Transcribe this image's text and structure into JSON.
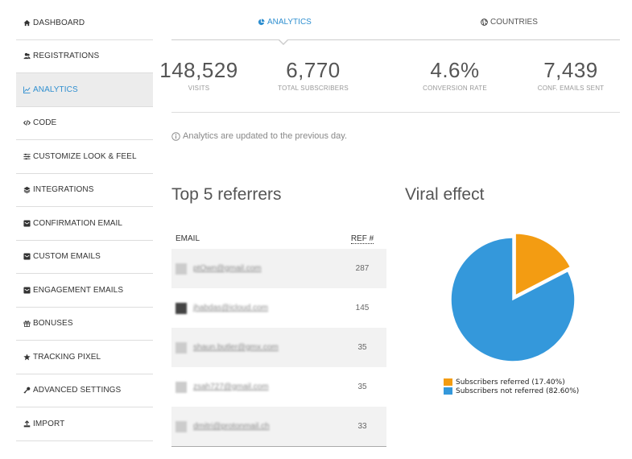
{
  "sidebar": {
    "items": [
      {
        "label": "DASHBOARD",
        "icon": "home-icon"
      },
      {
        "label": "REGISTRATIONS",
        "icon": "users-icon"
      },
      {
        "label": "ANALYTICS",
        "icon": "chart-icon"
      },
      {
        "label": "CODE",
        "icon": "code-icon"
      },
      {
        "label": "CUSTOMIZE LOOK & FEEL",
        "icon": "sliders-icon"
      },
      {
        "label": "INTEGRATIONS",
        "icon": "layers-icon"
      },
      {
        "label": "CONFIRMATION EMAIL",
        "icon": "envelope-icon"
      },
      {
        "label": "CUSTOM EMAILS",
        "icon": "envelope-icon"
      },
      {
        "label": "ENGAGEMENT EMAILS",
        "icon": "envelope-icon"
      },
      {
        "label": "BONUSES",
        "icon": "gift-icon"
      },
      {
        "label": "TRACKING PIXEL",
        "icon": "star-icon"
      },
      {
        "label": "ADVANCED SETTINGS",
        "icon": "key-icon"
      },
      {
        "label": "IMPORT",
        "icon": "upload-icon"
      }
    ],
    "active": "ANALYTICS"
  },
  "tabs": {
    "analytics": "ANALYTICS",
    "countries": "COUNTRIES"
  },
  "stats": [
    {
      "value": "148,529",
      "label": "VISITS"
    },
    {
      "value": "6,770",
      "label": "TOTAL SUBSCRIBERS"
    },
    {
      "value": "4.6%",
      "label": "CONVERSION RATE"
    },
    {
      "value": "7,439",
      "label": "CONF. EMAILS SENT"
    }
  ],
  "notice": "Analytics are updated to the previous day.",
  "referrers": {
    "title": "Top 5 referrers",
    "col_email": "EMAIL",
    "col_ref": "REF #",
    "rows": [
      {
        "email": "ptOwn@gmail.com",
        "ref": "287"
      },
      {
        "email": "jhabdas@icloud.com",
        "ref": "145"
      },
      {
        "email": "shaun.butler@gmx.com",
        "ref": "35"
      },
      {
        "email": "zsah727@gmail.com",
        "ref": "35"
      },
      {
        "email": "dmitri@protonmail.ch",
        "ref": "33"
      }
    ]
  },
  "viral": {
    "title": "Viral effect"
  },
  "chart_data": {
    "type": "pie",
    "title": "Viral effect",
    "slices": [
      {
        "label": "Subscribers referred (17.40%)",
        "value": 17.4,
        "color": "#f39c12"
      },
      {
        "label": "Subscribers not referred (82.60%)",
        "value": 82.6,
        "color": "#3498db"
      }
    ],
    "legend": "bottom"
  },
  "colors": {
    "accent": "#2f8fd0",
    "orange": "#f39c12",
    "blue": "#3498db"
  }
}
